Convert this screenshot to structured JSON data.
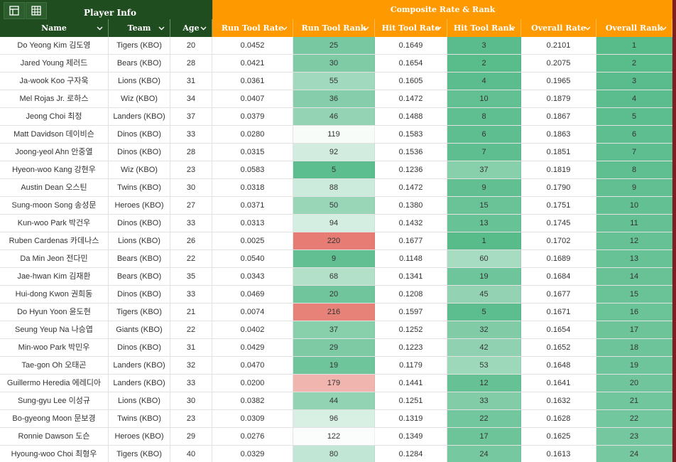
{
  "header": {
    "player_info": "Player Info",
    "composite": "Composite Rate & Rank",
    "icons": [
      "table-icon",
      "grid-icon"
    ]
  },
  "columns": [
    {
      "key": "name",
      "label": "Name",
      "group": "green"
    },
    {
      "key": "team",
      "label": "Team",
      "group": "green"
    },
    {
      "key": "age",
      "label": "Age",
      "group": "green"
    },
    {
      "key": "run_rate",
      "label": "Run Tool Rate",
      "group": "orange"
    },
    {
      "key": "run_rank",
      "label": "Run Tool Rank",
      "group": "orange"
    },
    {
      "key": "hit_rate",
      "label": "Hit Tool Rate",
      "group": "orange"
    },
    {
      "key": "hit_rank",
      "label": "Hit Tool Rank",
      "group": "orange"
    },
    {
      "key": "overall_rate",
      "label": "Overall Rate",
      "group": "orange"
    },
    {
      "key": "overall_rank",
      "label": "Overall Rank",
      "group": "orange"
    }
  ],
  "rows": [
    {
      "name": "Do Yeong Kim 김도영",
      "team": "Tigers (KBO)",
      "age": "20",
      "run_rate": "0.0452",
      "run_rank": "25",
      "hit_rate": "0.1649",
      "hit_rank": "3",
      "overall_rate": "0.2101",
      "overall_rank": "1"
    },
    {
      "name": "Jared Young 제러드",
      "team": "Bears (KBO)",
      "age": "28",
      "run_rate": "0.0421",
      "run_rank": "30",
      "hit_rate": "0.1654",
      "hit_rank": "2",
      "overall_rate": "0.2075",
      "overall_rank": "2"
    },
    {
      "name": "Ja-wook Koo 구자욱",
      "team": "Lions (KBO)",
      "age": "31",
      "run_rate": "0.0361",
      "run_rank": "55",
      "hit_rate": "0.1605",
      "hit_rank": "4",
      "overall_rate": "0.1965",
      "overall_rank": "3"
    },
    {
      "name": "Mel Rojas Jr. 로하스",
      "team": "Wiz (KBO)",
      "age": "34",
      "run_rate": "0.0407",
      "run_rank": "36",
      "hit_rate": "0.1472",
      "hit_rank": "10",
      "overall_rate": "0.1879",
      "overall_rank": "4"
    },
    {
      "name": "Jeong Choi 최정",
      "team": "Landers (KBO)",
      "age": "37",
      "run_rate": "0.0379",
      "run_rank": "46",
      "hit_rate": "0.1488",
      "hit_rank": "8",
      "overall_rate": "0.1867",
      "overall_rank": "5"
    },
    {
      "name": "Matt Davidson 데이비슨",
      "team": "Dinos (KBO)",
      "age": "33",
      "run_rate": "0.0280",
      "run_rank": "119",
      "hit_rate": "0.1583",
      "hit_rank": "6",
      "overall_rate": "0.1863",
      "overall_rank": "6"
    },
    {
      "name": "Joong-yeol Ahn 안중열",
      "team": "Dinos (KBO)",
      "age": "28",
      "run_rate": "0.0315",
      "run_rank": "92",
      "hit_rate": "0.1536",
      "hit_rank": "7",
      "overall_rate": "0.1851",
      "overall_rank": "7"
    },
    {
      "name": "Hyeon-woo Kang 강현우",
      "team": "Wiz (KBO)",
      "age": "23",
      "run_rate": "0.0583",
      "run_rank": "5",
      "hit_rate": "0.1236",
      "hit_rank": "37",
      "overall_rate": "0.1819",
      "overall_rank": "8"
    },
    {
      "name": "Austin Dean 오스틴",
      "team": "Twins (KBO)",
      "age": "30",
      "run_rate": "0.0318",
      "run_rank": "88",
      "hit_rate": "0.1472",
      "hit_rank": "9",
      "overall_rate": "0.1790",
      "overall_rank": "9"
    },
    {
      "name": "Sung-moon Song 송성문",
      "team": "Heroes (KBO)",
      "age": "27",
      "run_rate": "0.0371",
      "run_rank": "50",
      "hit_rate": "0.1380",
      "hit_rank": "15",
      "overall_rate": "0.1751",
      "overall_rank": "10"
    },
    {
      "name": "Kun-woo Park 박건우",
      "team": "Dinos (KBO)",
      "age": "33",
      "run_rate": "0.0313",
      "run_rank": "94",
      "hit_rate": "0.1432",
      "hit_rank": "13",
      "overall_rate": "0.1745",
      "overall_rank": "11"
    },
    {
      "name": "Ruben Cardenas 카데나스",
      "team": "Lions (KBO)",
      "age": "26",
      "run_rate": "0.0025",
      "run_rank": "220",
      "hit_rate": "0.1677",
      "hit_rank": "1",
      "overall_rate": "0.1702",
      "overall_rank": "12"
    },
    {
      "name": "Da Min Jeon 전다민",
      "team": "Bears (KBO)",
      "age": "22",
      "run_rate": "0.0540",
      "run_rank": "9",
      "hit_rate": "0.1148",
      "hit_rank": "60",
      "overall_rate": "0.1689",
      "overall_rank": "13"
    },
    {
      "name": "Jae-hwan Kim 김재환",
      "team": "Bears (KBO)",
      "age": "35",
      "run_rate": "0.0343",
      "run_rank": "68",
      "hit_rate": "0.1341",
      "hit_rank": "19",
      "overall_rate": "0.1684",
      "overall_rank": "14"
    },
    {
      "name": "Hui-dong Kwon 권희동",
      "team": "Dinos (KBO)",
      "age": "33",
      "run_rate": "0.0469",
      "run_rank": "20",
      "hit_rate": "0.1208",
      "hit_rank": "45",
      "overall_rate": "0.1677",
      "overall_rank": "15"
    },
    {
      "name": "Do Hyun Yoon 윤도현",
      "team": "Tigers (KBO)",
      "age": "21",
      "run_rate": "0.0074",
      "run_rank": "216",
      "hit_rate": "0.1597",
      "hit_rank": "5",
      "overall_rate": "0.1671",
      "overall_rank": "16"
    },
    {
      "name": "Seung Yeup Na 나승엽",
      "team": "Giants (KBO)",
      "age": "22",
      "run_rate": "0.0402",
      "run_rank": "37",
      "hit_rate": "0.1252",
      "hit_rank": "32",
      "overall_rate": "0.1654",
      "overall_rank": "17"
    },
    {
      "name": "Min-woo Park 박민우",
      "team": "Dinos (KBO)",
      "age": "31",
      "run_rate": "0.0429",
      "run_rank": "29",
      "hit_rate": "0.1223",
      "hit_rank": "42",
      "overall_rate": "0.1652",
      "overall_rank": "18"
    },
    {
      "name": "Tae-gon Oh 오태곤",
      "team": "Landers (KBO)",
      "age": "32",
      "run_rate": "0.0470",
      "run_rank": "19",
      "hit_rate": "0.1179",
      "hit_rank": "53",
      "overall_rate": "0.1648",
      "overall_rank": "19"
    },
    {
      "name": "Guillermo Heredia 에레디아",
      "team": "Landers (KBO)",
      "age": "33",
      "run_rate": "0.0200",
      "run_rank": "179",
      "hit_rate": "0.1441",
      "hit_rank": "12",
      "overall_rate": "0.1641",
      "overall_rank": "20"
    },
    {
      "name": "Sung-gyu Lee 이성규",
      "team": "Lions (KBO)",
      "age": "30",
      "run_rate": "0.0382",
      "run_rank": "44",
      "hit_rate": "0.1251",
      "hit_rank": "33",
      "overall_rate": "0.1632",
      "overall_rank": "21"
    },
    {
      "name": "Bo-gyeong Moon 문보경",
      "team": "Twins (KBO)",
      "age": "23",
      "run_rate": "0.0309",
      "run_rank": "96",
      "hit_rate": "0.1319",
      "hit_rank": "22",
      "overall_rate": "0.1628",
      "overall_rank": "22"
    },
    {
      "name": "Ronnie Dawson 도슨",
      "team": "Heroes (KBO)",
      "age": "29",
      "run_rate": "0.0276",
      "run_rank": "122",
      "hit_rate": "0.1349",
      "hit_rank": "17",
      "overall_rate": "0.1625",
      "overall_rank": "23"
    },
    {
      "name": "Hyoung-woo Choi 최형우",
      "team": "Tigers (KBO)",
      "age": "40",
      "run_rate": "0.0329",
      "run_rank": "80",
      "hit_rate": "0.1284",
      "hit_rank": "24",
      "overall_rate": "0.1613",
      "overall_rank": "24"
    }
  ],
  "colors": {
    "header_green": "#1f4d20",
    "header_orange": "#ff9900",
    "scale_best": "#57bb8a",
    "scale_mid": "#ffffff",
    "scale_worst": "#e67c73"
  }
}
